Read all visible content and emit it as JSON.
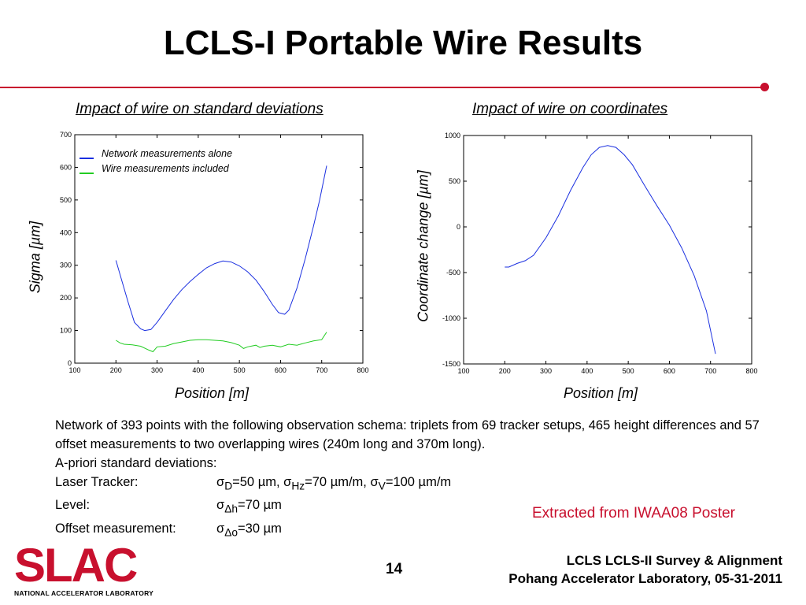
{
  "slide": {
    "title": "LCLS-I Portable Wire Results",
    "page_number": "14",
    "credit": "Extracted from IWAA08 Poster",
    "footer_line1": "LCLS LCLS-II Survey & Alignment",
    "footer_line2": "Pohang Accelerator Laboratory, 05-31-2011",
    "logo_text": "SLAC",
    "logo_subtitle": "NATIONAL ACCELERATOR LABORATORY"
  },
  "description": {
    "intro": "Network of 393 points with the following observation schema: triplets from 69 tracker setups, 465 height differences and 57 offset measurements to two overlapping wires (240m long and 370m long).",
    "apriori": "A-priori standard deviations:",
    "rows": [
      {
        "label": "Laser Tracker:",
        "v1": "=50 µm, ",
        "v2": "=70 µm/m, ",
        "v3": "=100 µm/m"
      },
      {
        "label": "Level:",
        "v1": "=70 µm"
      },
      {
        "label": "Offset measurement:",
        "v1": "=30 µm"
      }
    ]
  },
  "colors": {
    "accent_red": "#c8102e",
    "series_blue": "#1a2fe0",
    "series_green": "#22cc22"
  },
  "chart_data": [
    {
      "type": "line",
      "title": "Impact of wire on standard deviations",
      "xlabel": "Position [m]",
      "ylabel": "Sigma [µm]",
      "xlim": [
        100,
        800
      ],
      "ylim": [
        0,
        700
      ],
      "xticks": [
        100,
        200,
        300,
        400,
        500,
        600,
        700,
        800
      ],
      "yticks": [
        0,
        100,
        200,
        300,
        400,
        500,
        600,
        700
      ],
      "legend_position": "top-left",
      "series": [
        {
          "name": "Network measurements alone",
          "color": "#1a2fe0",
          "x": [
            200,
            215,
            230,
            245,
            260,
            270,
            285,
            300,
            320,
            340,
            360,
            380,
            400,
            420,
            440,
            460,
            480,
            500,
            520,
            540,
            560,
            580,
            595,
            610,
            620,
            640,
            660,
            680,
            695,
            712
          ],
          "y": [
            315,
            250,
            185,
            125,
            105,
            100,
            103,
            125,
            160,
            195,
            225,
            250,
            272,
            292,
            305,
            313,
            310,
            298,
            280,
            255,
            220,
            180,
            155,
            150,
            162,
            230,
            320,
            420,
            500,
            605
          ]
        },
        {
          "name": "Wire measurements included",
          "color": "#22cc22",
          "x": [
            200,
            210,
            220,
            240,
            260,
            280,
            290,
            300,
            320,
            340,
            360,
            380,
            400,
            420,
            440,
            460,
            480,
            500,
            510,
            520,
            540,
            550,
            560,
            580,
            600,
            620,
            640,
            660,
            680,
            700,
            712
          ],
          "y": [
            70,
            62,
            58,
            56,
            52,
            40,
            35,
            50,
            52,
            60,
            65,
            70,
            72,
            72,
            70,
            68,
            63,
            55,
            45,
            50,
            55,
            48,
            52,
            55,
            50,
            58,
            55,
            62,
            68,
            72,
            95
          ]
        }
      ]
    },
    {
      "type": "line",
      "title": "Impact of wire on coordinates",
      "xlabel": "Position [m]",
      "ylabel": "Coordinate  change [µm]",
      "xlim": [
        100,
        800
      ],
      "ylim": [
        -1500,
        1000
      ],
      "xticks": [
        100,
        200,
        300,
        400,
        500,
        600,
        700,
        800
      ],
      "yticks": [
        -1500,
        -1000,
        -500,
        0,
        500,
        1000
      ],
      "series": [
        {
          "color": "#1a2fe0",
          "x": [
            200,
            210,
            230,
            250,
            270,
            300,
            330,
            360,
            390,
            410,
            430,
            450,
            470,
            490,
            510,
            540,
            570,
            600,
            630,
            660,
            690,
            712
          ],
          "y": [
            -440,
            -440,
            -400,
            -370,
            -310,
            -120,
            120,
            400,
            650,
            790,
            870,
            890,
            870,
            790,
            680,
            450,
            230,
            20,
            -230,
            -530,
            -920,
            -1390
          ]
        }
      ]
    }
  ]
}
